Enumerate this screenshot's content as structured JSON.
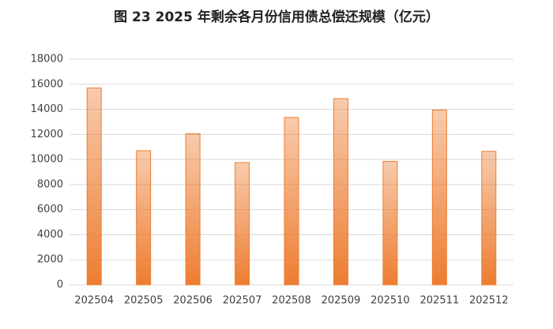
{
  "chart_data": {
    "type": "bar",
    "title": "图 23 2025 年剩余各月份信用债总偿还规模（亿元）",
    "categories": [
      "202504",
      "202505",
      "202506",
      "202507",
      "202508",
      "202509",
      "202510",
      "202511",
      "202512"
    ],
    "values": [
      15700,
      10700,
      12050,
      9750,
      13350,
      14850,
      9850,
      13950,
      10650
    ],
    "color": "#ed7d31",
    "ylim": [
      0,
      18000
    ],
    "yticks": [
      0,
      2000,
      4000,
      6000,
      8000,
      10000,
      12000,
      14000,
      16000,
      18000
    ],
    "grid": true
  }
}
